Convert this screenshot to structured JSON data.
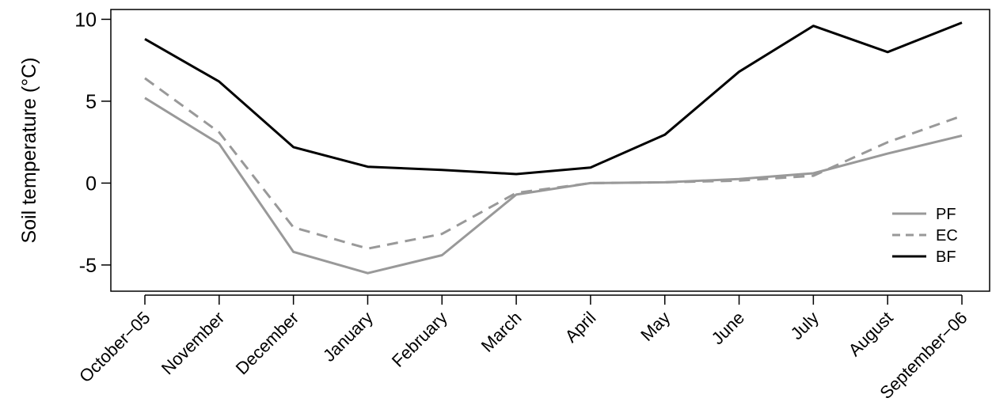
{
  "chart_data": {
    "type": "line",
    "title": "",
    "xlabel": "",
    "ylabel": "Soil temperature (°C)",
    "categories": [
      "October−05",
      "November",
      "December",
      "January",
      "February",
      "March",
      "April",
      "May",
      "June",
      "July",
      "August",
      "September−06"
    ],
    "ylim": [
      -6.6,
      10.6
    ],
    "yticks": [
      "-5",
      "0",
      "5",
      "10"
    ],
    "ytick_values": [
      -5,
      0,
      5,
      10
    ],
    "grid": false,
    "legend_position": "right",
    "series": [
      {
        "name": "PF",
        "color": "#999999",
        "dash": "solid",
        "values": [
          5.2,
          2.4,
          -4.2,
          -5.5,
          -4.4,
          -0.7,
          0.0,
          0.05,
          0.25,
          0.6,
          1.8,
          2.9
        ]
      },
      {
        "name": "EC",
        "color": "#999999",
        "dash": "dashed",
        "values": [
          6.4,
          3.1,
          -2.7,
          -4.0,
          -3.1,
          -0.6,
          0.0,
          0.05,
          0.15,
          0.45,
          2.5,
          4.1
        ]
      },
      {
        "name": "BF",
        "color": "#000000",
        "dash": "solid",
        "values": [
          8.8,
          6.2,
          2.2,
          1.0,
          0.8,
          0.55,
          0.95,
          2.95,
          6.8,
          9.6,
          8.0,
          9.8
        ]
      }
    ]
  }
}
